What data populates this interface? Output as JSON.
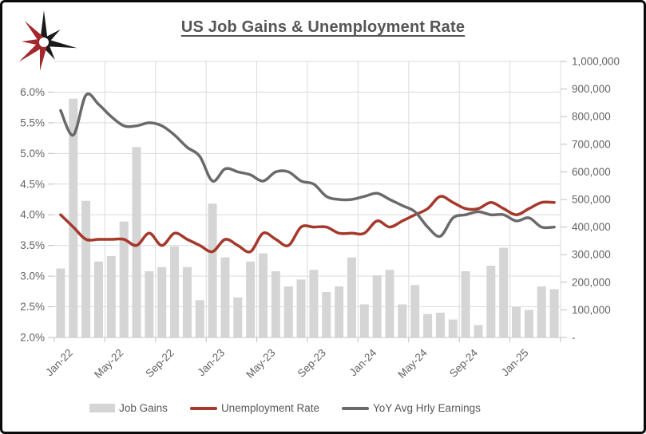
{
  "title": "US Job Gains & Unemployment Rate",
  "logo": {
    "name": "starburst-logo",
    "colors": {
      "red": "#A2282E",
      "black": "#1A1A1A"
    }
  },
  "colors": {
    "bars": "#D5D5D5",
    "unemployment_line": "#A5392B",
    "earnings_line": "#6A6A6A",
    "gridlines": "#DBDBDB",
    "axis_text": "#636363",
    "title_text": "#555555"
  },
  "legend": {
    "items": [
      {
        "label": "Job Gains",
        "swatch": "gray-bar"
      },
      {
        "label": "Unemployment Rate",
        "swatch": "red-line"
      },
      {
        "label": "YoY Avg Hrly Earnings",
        "swatch": "gray-line"
      }
    ]
  },
  "chart_data": {
    "type": "combo-bar-line",
    "title": "US Job Gains & Unemployment Rate",
    "grid": true,
    "legend_position": "bottom",
    "categories": [
      "Jan-22",
      "Feb-22",
      "Mar-22",
      "Apr-22",
      "May-22",
      "Jun-22",
      "Jul-22",
      "Aug-22",
      "Sep-22",
      "Oct-22",
      "Nov-22",
      "Dec-22",
      "Jan-23",
      "Feb-23",
      "Mar-23",
      "Apr-23",
      "May-23",
      "Jun-23",
      "Jul-23",
      "Aug-23",
      "Sep-23",
      "Oct-23",
      "Nov-23",
      "Dec-23",
      "Jan-24",
      "Feb-24",
      "Mar-24",
      "Apr-24",
      "May-24",
      "Jun-24",
      "Jul-24",
      "Aug-24",
      "Sep-24",
      "Oct-24",
      "Nov-24",
      "Dec-24",
      "Jan-25",
      "Feb-25",
      "Mar-25",
      "Apr-25"
    ],
    "x_tick_labels": [
      "Jan-22",
      "May-22",
      "Sep-22",
      "Jan-23",
      "May-23",
      "Sep-23",
      "Jan-24",
      "May-24",
      "Sep-24",
      "Jan-25"
    ],
    "x_label_every": 4,
    "series": [
      {
        "name": "Job Gains",
        "type": "bar",
        "axis": "right",
        "values": [
          250000,
          865000,
          495000,
          275000,
          295000,
          420000,
          690000,
          240000,
          255000,
          330000,
          255000,
          135000,
          485000,
          290000,
          145000,
          275000,
          305000,
          240000,
          185000,
          210000,
          245000,
          165000,
          185000,
          290000,
          120000,
          225000,
          245000,
          120000,
          190000,
          85000,
          90000,
          65000,
          240000,
          45000,
          260000,
          325000,
          110000,
          100000,
          185000,
          175000
        ]
      },
      {
        "name": "Unemployment Rate",
        "type": "line",
        "axis": "left",
        "color": "#A5392B",
        "values": [
          4.0,
          3.8,
          3.6,
          3.6,
          3.6,
          3.6,
          3.5,
          3.7,
          3.5,
          3.7,
          3.6,
          3.5,
          3.4,
          3.6,
          3.5,
          3.4,
          3.7,
          3.6,
          3.5,
          3.8,
          3.8,
          3.8,
          3.7,
          3.7,
          3.7,
          3.9,
          3.8,
          3.9,
          4.0,
          4.1,
          4.3,
          4.2,
          4.1,
          4.1,
          4.2,
          4.1,
          4.0,
          4.1,
          4.2,
          4.2
        ]
      },
      {
        "name": "YoY Avg Hrly Earnings",
        "type": "line",
        "axis": "left",
        "color": "#6A6A6A",
        "values": [
          5.7,
          5.3,
          5.95,
          5.8,
          5.6,
          5.45,
          5.45,
          5.5,
          5.45,
          5.3,
          5.1,
          4.95,
          4.55,
          4.75,
          4.7,
          4.65,
          4.55,
          4.7,
          4.7,
          4.55,
          4.5,
          4.3,
          4.25,
          4.25,
          4.3,
          4.35,
          4.25,
          4.15,
          4.05,
          3.8,
          3.65,
          3.95,
          4.0,
          4.05,
          4.0,
          4.0,
          3.9,
          3.95,
          3.8,
          3.8
        ]
      }
    ],
    "left_axis": {
      "min": 2.0,
      "max": 6.5,
      "tick_values": [
        6.0,
        5.5,
        5.0,
        4.5,
        4.0,
        3.5,
        3.0,
        2.5,
        2.0
      ],
      "tick_labels": [
        "6.0%",
        "5.5%",
        "5.0%",
        "4.5%",
        "4.0%",
        "3.5%",
        "3.0%",
        "2.5%",
        "2.0%"
      ]
    },
    "right_axis": {
      "min": 0,
      "max": 1000000,
      "tick_values": [
        1000000,
        900000,
        800000,
        700000,
        600000,
        500000,
        400000,
        300000,
        200000,
        100000,
        0
      ],
      "tick_labels": [
        "1,000,000",
        "900,000",
        "800,000",
        "700,000",
        "600,000",
        "500,000",
        "400,000",
        "300,000",
        "200,000",
        "100,000",
        "-"
      ]
    }
  }
}
